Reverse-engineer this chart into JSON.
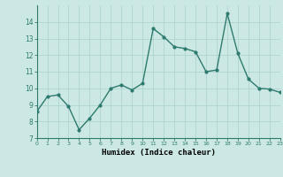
{
  "x": [
    0,
    1,
    2,
    3,
    4,
    5,
    6,
    7,
    8,
    9,
    10,
    11,
    12,
    13,
    14,
    15,
    16,
    17,
    18,
    19,
    20,
    21,
    22,
    23
  ],
  "y": [
    8.6,
    9.5,
    9.6,
    8.9,
    7.5,
    8.2,
    9.0,
    10.0,
    10.2,
    9.9,
    10.3,
    13.6,
    13.1,
    12.5,
    12.4,
    12.2,
    11.0,
    11.1,
    14.5,
    12.1,
    10.55,
    10.0,
    9.95,
    9.75
  ],
  "xlabel": "Humidex (Indice chaleur)",
  "ylim": [
    7,
    15
  ],
  "xlim": [
    0,
    23
  ],
  "yticks": [
    7,
    8,
    9,
    10,
    11,
    12,
    13,
    14
  ],
  "xticks": [
    0,
    1,
    2,
    3,
    4,
    5,
    6,
    7,
    8,
    9,
    10,
    11,
    12,
    13,
    14,
    15,
    16,
    17,
    18,
    19,
    20,
    21,
    22,
    23
  ],
  "line_color": "#2d7a6e",
  "bg_color": "#cce8e4",
  "grid_color": "#afd4cf",
  "marker": "o",
  "marker_size": 2,
  "line_width": 1.0
}
